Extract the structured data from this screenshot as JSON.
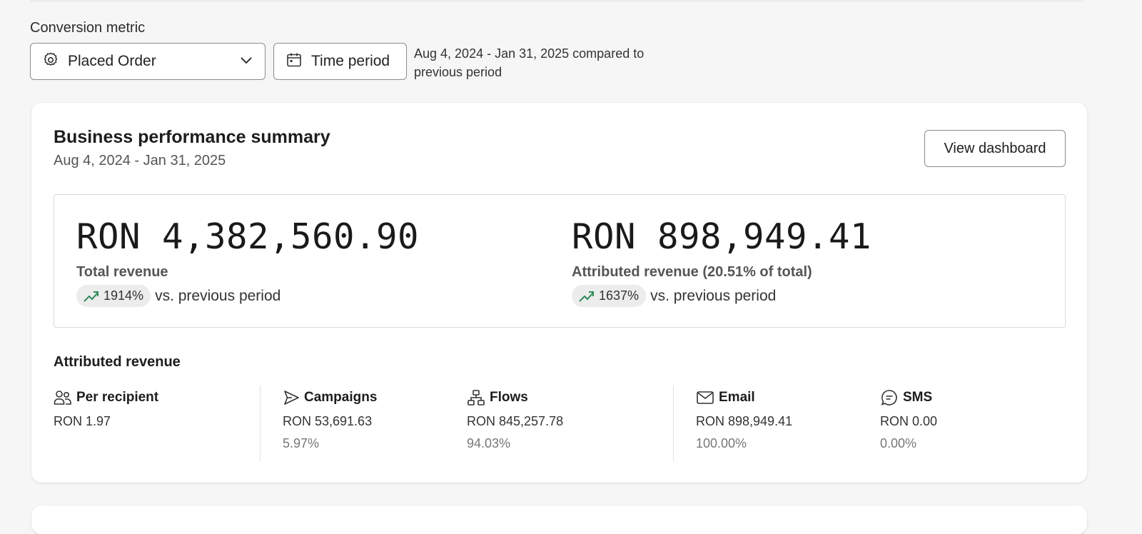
{
  "filters": {
    "conversion_metric_label": "Conversion metric",
    "metric_selected": "Placed Order",
    "time_period_label": "Time period",
    "period_note": "Aug 4, 2024 - Jan 31, 2025 compared to previous period"
  },
  "summary": {
    "title": "Business performance summary",
    "date_range": "Aug 4, 2024 - Jan 31, 2025",
    "view_dashboard_label": "View dashboard",
    "total": {
      "value": "RON 4,382,560.90",
      "label": "Total revenue",
      "change": "1914%",
      "compare_text": "vs. previous period"
    },
    "attributed": {
      "value": "RON 898,949.41",
      "label": "Attributed revenue (20.51% of total)",
      "change": "1637%",
      "compare_text": "vs. previous period"
    }
  },
  "attributed_revenue": {
    "title": "Attributed revenue",
    "per_recipient": {
      "label": "Per recipient",
      "value": "RON 1.97",
      "icon": "users-icon"
    },
    "campaigns": {
      "label": "Campaigns",
      "value": "RON 53,691.63",
      "pct": "5.97%",
      "icon": "send-icon"
    },
    "flows": {
      "label": "Flows",
      "value": "RON 845,257.78",
      "pct": "94.03%",
      "icon": "flows-icon"
    },
    "email": {
      "label": "Email",
      "value": "RON 898,949.41",
      "pct": "100.00%",
      "icon": "mail-icon"
    },
    "sms": {
      "label": "SMS",
      "value": "RON 0.00",
      "pct": "0.00%",
      "icon": "chat-icon"
    }
  },
  "colors": {
    "background": "#f6f6f7",
    "card": "#ffffff",
    "trend_up": "#2e8b57",
    "border": "#8c8c8c"
  }
}
